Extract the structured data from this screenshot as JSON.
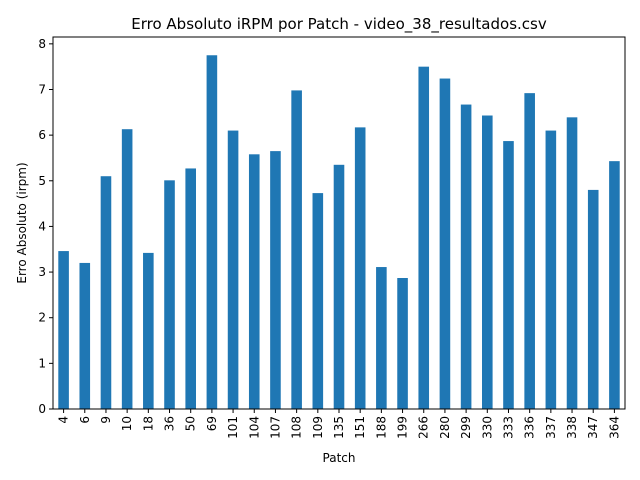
{
  "chart_data": {
    "type": "bar",
    "title": "Erro Absoluto iRPM por Patch - video_38_resultados.csv",
    "xlabel": "Patch",
    "ylabel": "Erro Absoluto (irpm)",
    "ylim": [
      0,
      8.15
    ],
    "yticks": [
      0,
      1,
      2,
      3,
      4,
      5,
      6,
      7,
      8
    ],
    "grid": false,
    "bar_color": "#1f77b4",
    "categories": [
      "4",
      "6",
      "9",
      "10",
      "18",
      "36",
      "50",
      "69",
      "101",
      "104",
      "107",
      "108",
      "109",
      "135",
      "151",
      "188",
      "199",
      "266",
      "280",
      "299",
      "330",
      "333",
      "336",
      "337",
      "338",
      "347",
      "364"
    ],
    "values": [
      3.46,
      3.2,
      5.1,
      6.13,
      3.42,
      5.01,
      5.27,
      7.75,
      6.1,
      5.58,
      5.65,
      6.98,
      4.73,
      5.35,
      6.17,
      3.11,
      2.87,
      7.5,
      7.24,
      6.67,
      6.43,
      5.87,
      6.92,
      6.1,
      6.39,
      4.8,
      5.43
    ]
  }
}
